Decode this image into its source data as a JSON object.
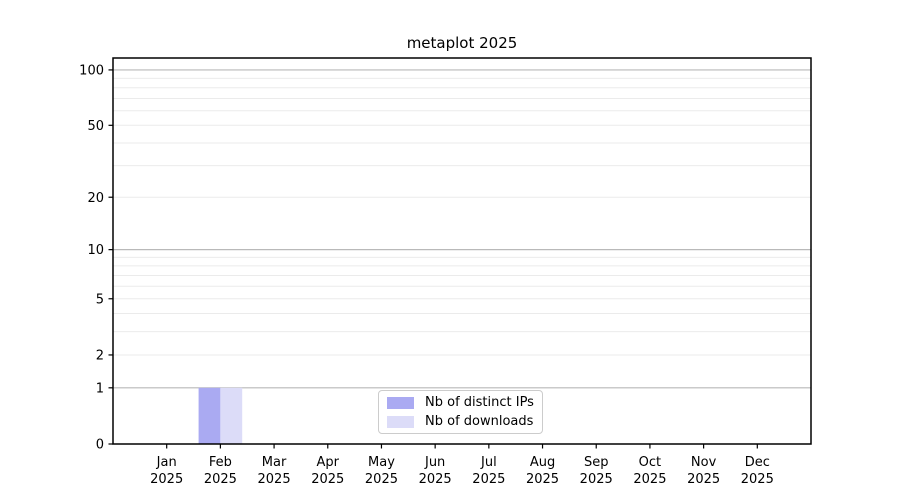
{
  "chart_data": {
    "type": "bar",
    "title": "metaplot 2025",
    "x_categories": [
      "Jan",
      "Feb",
      "Mar",
      "Apr",
      "May",
      "Jun",
      "Jul",
      "Aug",
      "Sep",
      "Oct",
      "Nov",
      "Dec"
    ],
    "x_year_label": "2025",
    "series": [
      {
        "name": "Nb of distinct IPs",
        "color": "#aaaaf2",
        "values": [
          0,
          1,
          0,
          0,
          0,
          0,
          0,
          0,
          0,
          0,
          0,
          0
        ]
      },
      {
        "name": "Nb of downloads",
        "color": "#dcdcf8",
        "values": [
          0,
          1,
          0,
          0,
          0,
          0,
          0,
          0,
          0,
          0,
          0,
          0
        ]
      }
    ],
    "y_scale": "log1p",
    "ylim": [
      0,
      116
    ],
    "y_major_ticks": [
      0,
      1,
      2,
      5,
      10,
      20,
      50,
      100
    ],
    "y_gridlines_dark": [
      1,
      10,
      100
    ],
    "y_gridlines_light": [
      2,
      3,
      4,
      5,
      6,
      7,
      8,
      9,
      20,
      30,
      40,
      50,
      60,
      70,
      80,
      90
    ],
    "legend_position": "lower center",
    "grid": true
  },
  "colors": {
    "background": "#ffffff",
    "grid_major": "#b9b9b9",
    "grid_minor": "#ebebeb",
    "spine": "#000000",
    "text": "#000000"
  }
}
